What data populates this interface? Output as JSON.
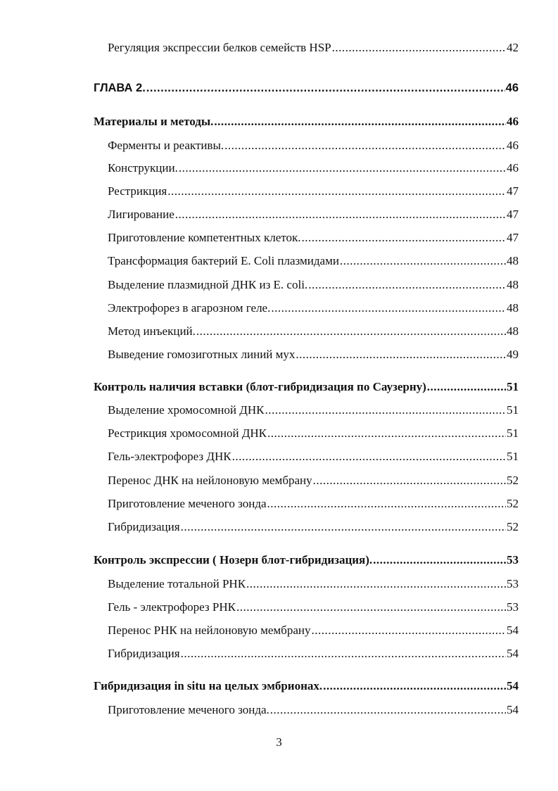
{
  "toc": [
    {
      "level": "l2",
      "title": "Регуляция экспрессии белков семейств HSP",
      "page": "42"
    },
    {
      "level": "ch",
      "title": "ГЛАВА 2.",
      "page": "46"
    },
    {
      "level": "l1",
      "title": "Материалы и методы.",
      "page": "46"
    },
    {
      "level": "l2",
      "title": "Ферменты и реактивы.",
      "page": "46"
    },
    {
      "level": "l2",
      "title": "Конструкции.",
      "page": "46"
    },
    {
      "level": "l2",
      "title": "Рестрикция",
      "page": "47"
    },
    {
      "level": "l2",
      "title": "Лигирование",
      "page": "47"
    },
    {
      "level": "l2",
      "title": "Приготовление компетентных клеток.",
      "page": "47"
    },
    {
      "level": "l2",
      "title": "Трансформация бактерий E. Coli плазмидами",
      "page": "48"
    },
    {
      "level": "l2",
      "title": "Выделение плазмидной ДНК из E. coli.",
      "page": "48"
    },
    {
      "level": "l2",
      "title": "Электрофорез в агарозном геле.",
      "page": "48"
    },
    {
      "level": "l2",
      "title": "Метод инъекций.",
      "page": "48"
    },
    {
      "level": "l2",
      "title": "Выведение гомозиготных линий мух",
      "page": "49"
    },
    {
      "level": "l1",
      "title": "Контроль наличия вставки (блот-гибридизация по Саузерну)",
      "page": "51"
    },
    {
      "level": "l2",
      "title": "Выделение хромосомной ДНК",
      "page": "51"
    },
    {
      "level": "l2",
      "title": "Рестрикция хромосомной ДНК",
      "page": "51"
    },
    {
      "level": "l2",
      "title": "Гель-электрофорез ДНК",
      "page": "51"
    },
    {
      "level": "l2",
      "title": "Перенос ДНК на нейлоновую мембрану",
      "page": "52"
    },
    {
      "level": "l2",
      "title": "Приготовление меченого зонда",
      "page": "52"
    },
    {
      "level": "l2",
      "title": "Гибридизация",
      "page": "52"
    },
    {
      "level": "l1",
      "title": "Контроль экспрессии ( Нозерн блот-гибридизация).",
      "page": "53"
    },
    {
      "level": "l2",
      "title": "Выделение тотальной РНК",
      "page": "53"
    },
    {
      "level": "l2",
      "title": "Гель - электрофорез РНК",
      "page": "53"
    },
    {
      "level": "l2",
      "title": "Перенос РНК на нейлоновую мембрану",
      "page": "54"
    },
    {
      "level": "l2",
      "title": "Гибридизация",
      "page": "54"
    },
    {
      "level": "l1",
      "title": "Гибридизация in situ на целых эмбрионах.",
      "page": "54"
    },
    {
      "level": "l2",
      "title": "Приготовление меченого зонда.",
      "page": "54"
    }
  ],
  "page_number": "3"
}
